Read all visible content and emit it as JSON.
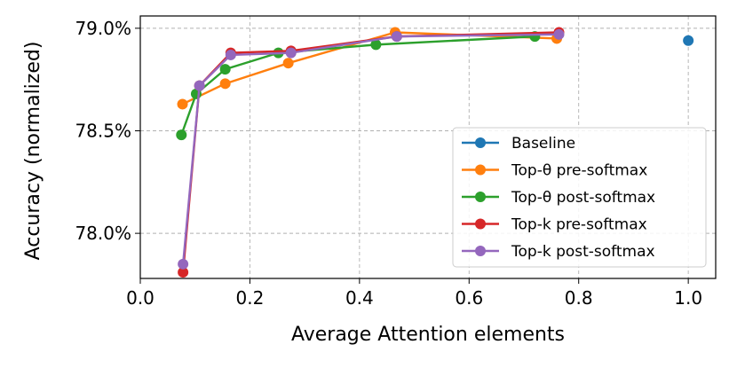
{
  "chart_data": {
    "type": "line",
    "title": "",
    "xlabel": "Average Attention elements",
    "ylabel": "Accuracy (normalized)",
    "xlim": [
      0.0,
      1.05
    ],
    "ylim": [
      77.78,
      79.06
    ],
    "xticks": [
      0.0,
      0.2,
      0.4,
      0.6,
      0.8,
      1.0
    ],
    "xtick_labels": [
      "0.0",
      "0.2",
      "0.4",
      "0.6",
      "0.8",
      "1.0"
    ],
    "yticks": [
      78.0,
      78.5,
      79.0
    ],
    "ytick_labels": [
      "78.0%",
      "78.5%",
      "79.0%"
    ],
    "grid": true,
    "legend_position": "lower-right",
    "series": [
      {
        "name": "Baseline",
        "color": "#1f77b4",
        "line": false,
        "x": [
          1.0
        ],
        "y": [
          78.94
        ]
      },
      {
        "name": "Top-θ pre-softmax",
        "color": "#ff7f0e",
        "line": true,
        "x": [
          0.077,
          0.155,
          0.27,
          0.465,
          0.76
        ],
        "y": [
          78.63,
          78.73,
          78.83,
          78.98,
          78.95
        ]
      },
      {
        "name": "Top-θ post-softmax",
        "color": "#2ca02c",
        "line": true,
        "x": [
          0.075,
          0.102,
          0.155,
          0.252,
          0.43,
          0.72
        ],
        "y": [
          78.48,
          78.68,
          78.8,
          78.88,
          78.92,
          78.96
        ]
      },
      {
        "name": "Top-k pre-softmax",
        "color": "#d62728",
        "line": true,
        "x": [
          0.078,
          0.108,
          0.165,
          0.275,
          0.468,
          0.764
        ],
        "y": [
          77.81,
          78.72,
          78.88,
          78.89,
          78.96,
          78.98
        ]
      },
      {
        "name": "Top-k post-softmax",
        "color": "#9467bd",
        "line": true,
        "x": [
          0.078,
          0.108,
          0.165,
          0.275,
          0.468,
          0.764
        ],
        "y": [
          77.85,
          78.72,
          78.87,
          78.88,
          78.96,
          78.97
        ]
      }
    ]
  }
}
